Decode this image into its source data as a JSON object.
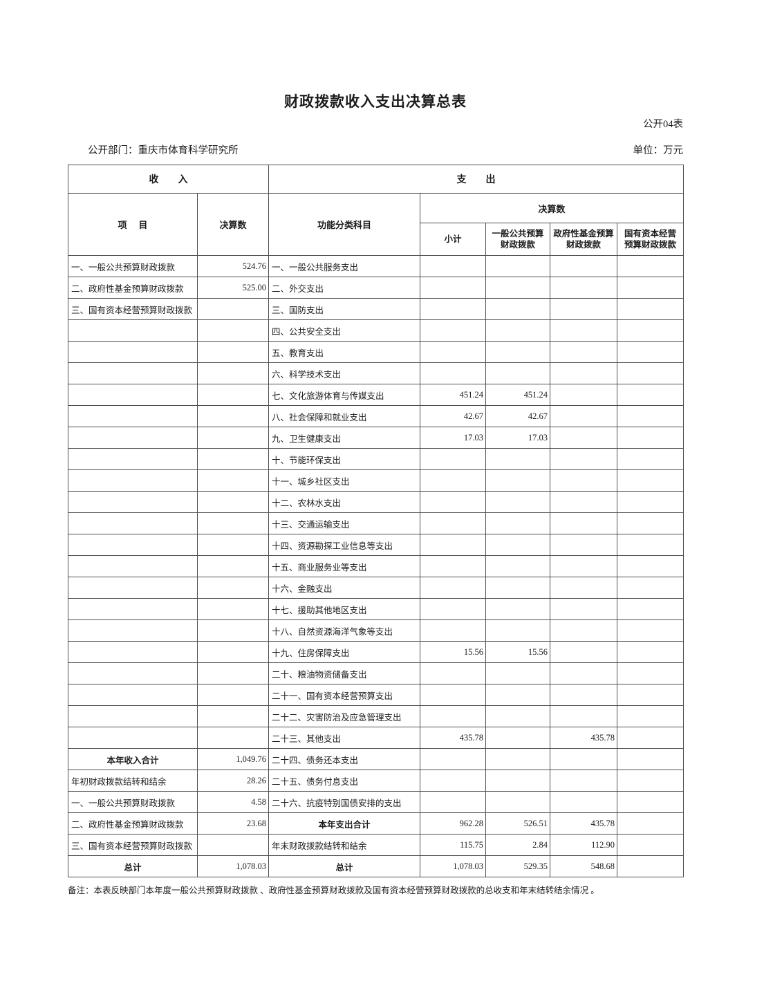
{
  "document": {
    "title": "财政拨款收入支出决算总表",
    "form_code": "公开04表",
    "department": "公开部门：重庆市体育科学研究所",
    "unit": "单位：万元",
    "note": "备注：本表反映部门本年度一般公共预算财政拨款 、政府性基金预算财政拨款及国有资本经营预算财政拨款的总收支和年末结转结余情况  。"
  },
  "table": {
    "headers": {
      "income_section": "收入",
      "expenditure_section": "支出",
      "item": "项目",
      "final_amount": "决算数",
      "functional_subject": "功能分类科目",
      "exp_final_amount": "决算数",
      "subtotal": "小计",
      "general_public_budget": "一般公共预算财政拨款",
      "government_fund_budget": "政府性基金预算财政拨款",
      "state_capital_budget": "国有资本经营预算财政拨款"
    },
    "total_row_labels": [
      "本年收入合计",
      "本年支出合计",
      "总计"
    ],
    "rows": [
      {
        "income_item": "一、一般公共预算财政拨款",
        "income_amount": "524.76",
        "exp_item": "一、一般公共服务支出",
        "subtotal": "",
        "general_public": "",
        "government_fund": "",
        "state_capital": ""
      },
      {
        "income_item": "二、政府性基金预算财政拨款",
        "income_amount": "525.00",
        "exp_item": "二、外交支出",
        "subtotal": "",
        "general_public": "",
        "government_fund": "",
        "state_capital": ""
      },
      {
        "income_item": "三、国有资本经营预算财政拨款",
        "income_amount": "",
        "exp_item": "三、国防支出",
        "subtotal": "",
        "general_public": "",
        "government_fund": "",
        "state_capital": ""
      },
      {
        "income_item": "",
        "income_amount": "",
        "exp_item": "四、公共安全支出",
        "subtotal": "",
        "general_public": "",
        "government_fund": "",
        "state_capital": ""
      },
      {
        "income_item": "",
        "income_amount": "",
        "exp_item": "五、教育支出",
        "subtotal": "",
        "general_public": "",
        "government_fund": "",
        "state_capital": ""
      },
      {
        "income_item": "",
        "income_amount": "",
        "exp_item": "六、科学技术支出",
        "subtotal": "",
        "general_public": "",
        "government_fund": "",
        "state_capital": ""
      },
      {
        "income_item": "",
        "income_amount": "",
        "exp_item": "七、文化旅游体育与传媒支出",
        "subtotal": "451.24",
        "general_public": "451.24",
        "government_fund": "",
        "state_capital": ""
      },
      {
        "income_item": "",
        "income_amount": "",
        "exp_item": "八、社会保障和就业支出",
        "subtotal": "42.67",
        "general_public": "42.67",
        "government_fund": "",
        "state_capital": ""
      },
      {
        "income_item": "",
        "income_amount": "",
        "exp_item": "九、卫生健康支出",
        "subtotal": "17.03",
        "general_public": "17.03",
        "government_fund": "",
        "state_capital": ""
      },
      {
        "income_item": "",
        "income_amount": "",
        "exp_item": "十、节能环保支出",
        "subtotal": "",
        "general_public": "",
        "government_fund": "",
        "state_capital": ""
      },
      {
        "income_item": "",
        "income_amount": "",
        "exp_item": "十一、城乡社区支出",
        "subtotal": "",
        "general_public": "",
        "government_fund": "",
        "state_capital": ""
      },
      {
        "income_item": "",
        "income_amount": "",
        "exp_item": "十二、农林水支出",
        "subtotal": "",
        "general_public": "",
        "government_fund": "",
        "state_capital": ""
      },
      {
        "income_item": "",
        "income_amount": "",
        "exp_item": "十三、交通运输支出",
        "subtotal": "",
        "general_public": "",
        "government_fund": "",
        "state_capital": ""
      },
      {
        "income_item": "",
        "income_amount": "",
        "exp_item": "十四、资源勘探工业信息等支出",
        "subtotal": "",
        "general_public": "",
        "government_fund": "",
        "state_capital": ""
      },
      {
        "income_item": "",
        "income_amount": "",
        "exp_item": "十五、商业服务业等支出",
        "subtotal": "",
        "general_public": "",
        "government_fund": "",
        "state_capital": ""
      },
      {
        "income_item": "",
        "income_amount": "",
        "exp_item": "十六、金融支出",
        "subtotal": "",
        "general_public": "",
        "government_fund": "",
        "state_capital": ""
      },
      {
        "income_item": "",
        "income_amount": "",
        "exp_item": "十七、援助其他地区支出",
        "subtotal": "",
        "general_public": "",
        "government_fund": "",
        "state_capital": ""
      },
      {
        "income_item": "",
        "income_amount": "",
        "exp_item": "十八、自然资源海洋气象等支出",
        "subtotal": "",
        "general_public": "",
        "government_fund": "",
        "state_capital": ""
      },
      {
        "income_item": "",
        "income_amount": "",
        "exp_item": "十九、住房保障支出",
        "subtotal": "15.56",
        "general_public": "15.56",
        "government_fund": "",
        "state_capital": ""
      },
      {
        "income_item": "",
        "income_amount": "",
        "exp_item": "二十、粮油物资储备支出",
        "subtotal": "",
        "general_public": "",
        "government_fund": "",
        "state_capital": ""
      },
      {
        "income_item": "",
        "income_amount": "",
        "exp_item": "二十一、国有资本经营预算支出",
        "subtotal": "",
        "general_public": "",
        "government_fund": "",
        "state_capital": ""
      },
      {
        "income_item": "",
        "income_amount": "",
        "exp_item": "二十二、灾害防治及应急管理支出",
        "subtotal": "",
        "general_public": "",
        "government_fund": "",
        "state_capital": ""
      },
      {
        "income_item": "",
        "income_amount": "",
        "exp_item": "二十三、其他支出",
        "subtotal": "435.78",
        "general_public": "",
        "government_fund": "435.78",
        "state_capital": ""
      },
      {
        "income_item": "本年收入合计",
        "income_amount": "1,049.76",
        "exp_item": "二十四、债务还本支出",
        "subtotal": "",
        "general_public": "",
        "government_fund": "",
        "state_capital": ""
      },
      {
        "income_item": "年初财政拨款结转和结余",
        "income_amount": "28.26",
        "exp_item": "二十五、债务付息支出",
        "subtotal": "",
        "general_public": "",
        "government_fund": "",
        "state_capital": ""
      },
      {
        "income_item": "一、一般公共预算财政拨款",
        "income_amount": "4.58",
        "exp_item": "二十六、抗疫特别国债安排的支出",
        "subtotal": "",
        "general_public": "",
        "government_fund": "",
        "state_capital": ""
      },
      {
        "income_item": "二、政府性基金预算财政拨款",
        "income_amount": "23.68",
        "exp_item": "本年支出合计",
        "subtotal": "962.28",
        "general_public": "526.51",
        "government_fund": "435.78",
        "state_capital": ""
      },
      {
        "income_item": "三、国有资本经营预算财政拨款",
        "income_amount": "",
        "exp_item": "年末财政拨款结转和结余",
        "subtotal": "115.75",
        "general_public": "2.84",
        "government_fund": "112.90",
        "state_capital": ""
      },
      {
        "income_item": "总计",
        "income_amount": "1,078.03",
        "exp_item": "总计",
        "subtotal": "1,078.03",
        "general_public": "529.35",
        "government_fund": "548.68",
        "state_capital": ""
      }
    ]
  }
}
